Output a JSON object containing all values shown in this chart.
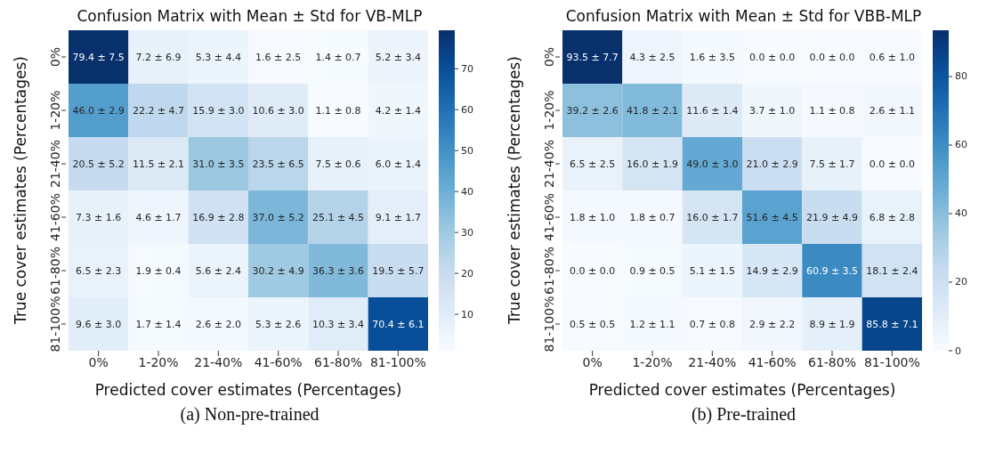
{
  "chart_data": [
    {
      "type": "heatmap",
      "title": "Confusion Matrix with Mean ± Std for VB-MLP",
      "xlabel": "Predicted cover estimates (Percentages)",
      "ylabel": "True cover estimates (Percentages)",
      "categories": [
        "0%",
        "1-20%",
        "21-40%",
        "41-60%",
        "61-80%",
        "81-100%"
      ],
      "y_categories": [
        "0%",
        "1-20%",
        "21-40%",
        "41-60%",
        "61-80%",
        "81-100%"
      ],
      "cells": [
        [
          79.4,
          7.2,
          5.3,
          1.6,
          1.4,
          5.2
        ],
        [
          46.0,
          22.2,
          15.9,
          10.6,
          1.1,
          4.2
        ],
        [
          20.5,
          11.5,
          31.0,
          23.5,
          7.5,
          6.0
        ],
        [
          7.3,
          4.6,
          16.9,
          37.0,
          25.1,
          9.1
        ],
        [
          6.5,
          1.9,
          5.6,
          30.2,
          36.3,
          19.5
        ],
        [
          9.6,
          1.7,
          2.6,
          5.3,
          10.3,
          70.4
        ]
      ],
      "cell_labels": [
        [
          "79.4 ± 7.5",
          "7.2 ± 6.9",
          "5.3 ± 4.4",
          "1.6 ± 2.5",
          "1.4 ± 0.7",
          "5.2 ± 3.4"
        ],
        [
          "46.0 ± 2.9",
          "22.2 ± 4.7",
          "15.9 ± 3.0",
          "10.6 ± 3.0",
          "1.1 ± 0.8",
          "4.2 ± 1.4"
        ],
        [
          "20.5 ± 5.2",
          "11.5 ± 2.1",
          "31.0 ± 3.5",
          "23.5 ± 6.5",
          "7.5 ± 0.6",
          "6.0 ± 1.4"
        ],
        [
          "7.3 ± 1.6",
          "4.6 ± 1.7",
          "16.9 ± 2.8",
          "37.0 ± 5.2",
          "25.1 ± 4.5",
          "9.1 ± 1.7"
        ],
        [
          "6.5 ± 2.3",
          "1.9 ± 0.4",
          "5.6 ± 2.4",
          "30.2 ± 4.9",
          "36.3 ± 3.6",
          "19.5 ± 5.7"
        ],
        [
          "9.6 ± 3.0",
          "1.7 ± 1.4",
          "2.6 ± 2.0",
          "5.3 ± 2.6",
          "10.3 ± 3.4",
          "70.4 ± 6.1"
        ]
      ],
      "clim": [
        1.1,
        79.4
      ],
      "cticks": [
        10,
        20,
        30,
        40,
        50,
        60,
        70
      ],
      "annotations": [
        "(a) Non-pre-trained"
      ]
    },
    {
      "type": "heatmap",
      "title": "Confusion Matrix with Mean ± Std for VBB-MLP",
      "xlabel": "Predicted cover estimates (Percentages)",
      "ylabel": "True cover estimates (Percentages)",
      "categories": [
        "0%",
        "1-20%",
        "21-40%",
        "41-60%",
        "61-80%",
        "81-100%"
      ],
      "y_categories": [
        "0%",
        "1-20%",
        "21-40%",
        "41-60%",
        "61-80%",
        "81-100%"
      ],
      "cells": [
        [
          93.5,
          4.3,
          1.6,
          0.0,
          0.0,
          0.6
        ],
        [
          39.2,
          41.8,
          11.6,
          3.7,
          1.1,
          2.6
        ],
        [
          6.5,
          16.0,
          49.0,
          21.0,
          7.5,
          0.0
        ],
        [
          1.8,
          1.8,
          16.0,
          51.6,
          21.9,
          6.8
        ],
        [
          0.0,
          0.9,
          5.1,
          14.9,
          60.9,
          18.1
        ],
        [
          0.5,
          1.2,
          0.7,
          2.9,
          8.9,
          85.8
        ]
      ],
      "cell_labels": [
        [
          "93.5 ± 7.7",
          "4.3 ± 2.5",
          "1.6 ± 3.5",
          "0.0 ± 0.0",
          "0.0 ± 0.0",
          "0.6 ± 1.0"
        ],
        [
          "39.2 ± 2.6",
          "41.8 ± 2.1",
          "11.6 ± 1.4",
          "3.7 ± 1.0",
          "1.1 ± 0.8",
          "2.6 ± 1.1"
        ],
        [
          "6.5 ± 2.5",
          "16.0 ± 1.9",
          "49.0 ± 3.0",
          "21.0 ± 2.9",
          "7.5 ± 1.7",
          "0.0 ± 0.0"
        ],
        [
          "1.8 ± 1.0",
          "1.8 ± 0.7",
          "16.0 ± 1.7",
          "51.6 ± 4.5",
          "21.9 ± 4.9",
          "6.8 ± 2.8"
        ],
        [
          "0.0 ± 0.0",
          "0.9 ± 0.5",
          "5.1 ± 1.5",
          "14.9 ± 2.9",
          "60.9 ± 3.5",
          "18.1 ± 2.4"
        ],
        [
          "0.5 ± 0.5",
          "1.2 ± 1.1",
          "0.7 ± 0.8",
          "2.9 ± 2.2",
          "8.9 ± 1.9",
          "85.8 ± 7.1"
        ]
      ],
      "clim": [
        0,
        93.5
      ],
      "cticks": [
        0,
        20,
        40,
        60,
        80
      ],
      "annotations": [
        "(b) Pre-trained"
      ]
    }
  ]
}
